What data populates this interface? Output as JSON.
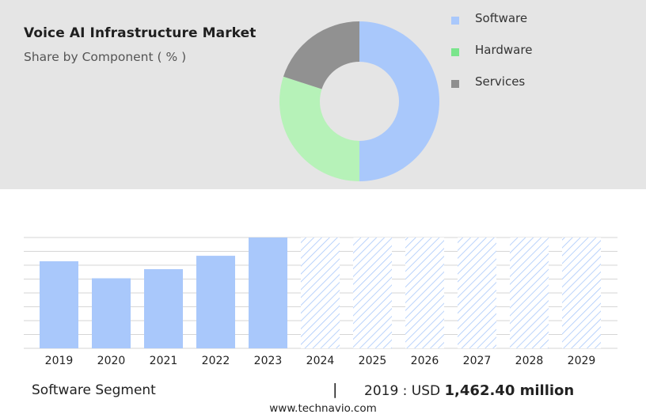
{
  "header": {
    "title": "Voice AI Infrastructure Market",
    "subtitle": "Share by Component ( % )"
  },
  "legend": [
    {
      "label": "Software",
      "color": "#a9c8fb"
    },
    {
      "label": "Hardware",
      "color": "#7ae58c"
    },
    {
      "label": "Services",
      "color": "#8f8f8f"
    }
  ],
  "footer": {
    "segment_label": "Software Segment",
    "separator": "|",
    "stat_prefix": "2019 : USD ",
    "stat_value": "1,462.40 million",
    "url": "www.technavio.com"
  },
  "chart_data": [
    {
      "type": "pie",
      "categories": [
        "Software",
        "Hardware",
        "Services"
      ],
      "values": [
        50,
        30,
        20
      ],
      "colors": [
        "#a9c8fb",
        "#b6f2b8",
        "#919191"
      ]
    },
    {
      "type": "bar",
      "categories": [
        "2019",
        "2020",
        "2021",
        "2022",
        "2023",
        "2024",
        "2025",
        "2026",
        "2027",
        "2028",
        "2029"
      ],
      "values": [
        1462.4,
        1177,
        1330,
        1555,
        1862,
        null,
        null,
        null,
        null,
        null,
        null
      ],
      "forecast_hatched": [
        false,
        false,
        false,
        false,
        false,
        true,
        true,
        true,
        true,
        true,
        true
      ],
      "ylim": [
        0,
        1862
      ],
      "grid": true,
      "bar_color": "#a9c8fb"
    }
  ]
}
